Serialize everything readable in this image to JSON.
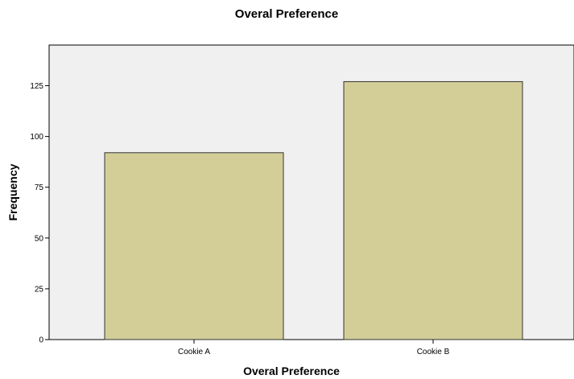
{
  "chart_data": {
    "type": "bar",
    "title": "Overal Preference",
    "xlabel": "Overal Preference",
    "ylabel": "Frequency",
    "categories": [
      "Cookie A",
      "Cookie B"
    ],
    "values": [
      92,
      127
    ],
    "ylim": [
      0,
      145
    ],
    "yticks": [
      0,
      25,
      50,
      75,
      100,
      125
    ],
    "grid": false,
    "legend": "none"
  },
  "colors": {
    "bar_fill": "#d3cd98",
    "bar_stroke": "#333333",
    "plot_background": "#f0f0f0",
    "axis": "#000000"
  }
}
